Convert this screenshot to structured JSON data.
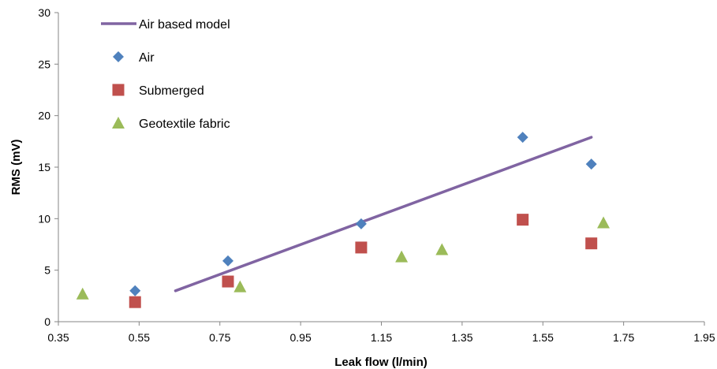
{
  "chart_data": {
    "type": "scatter",
    "xlabel": "Leak flow (l/min)",
    "ylabel": "RMS (mV)",
    "xlim": [
      0.35,
      1.95
    ],
    "ylim": [
      0,
      30
    ],
    "x_ticks": [
      "0.35",
      "0.55",
      "0.75",
      "0.95",
      "1.15",
      "1.35",
      "1.55",
      "1.75",
      "1.95"
    ],
    "y_ticks": [
      "0",
      "5",
      "10",
      "15",
      "20",
      "25",
      "30"
    ],
    "grid": false,
    "legend_placement": "top-left",
    "series": [
      {
        "name": "Air based model",
        "kind": "line",
        "color": "#8064A2",
        "points": [
          [
            0.64,
            3.0
          ],
          [
            1.67,
            17.9
          ]
        ]
      },
      {
        "name": "Air",
        "kind": "marker",
        "marker": "diamond",
        "color": "#4F81BD",
        "points": [
          [
            0.54,
            3.0
          ],
          [
            0.77,
            5.9
          ],
          [
            1.1,
            9.5
          ],
          [
            1.5,
            17.9
          ],
          [
            1.67,
            15.3
          ]
        ]
      },
      {
        "name": "Submerged",
        "kind": "marker",
        "marker": "square",
        "color": "#C0504D",
        "points": [
          [
            0.54,
            1.9
          ],
          [
            0.77,
            3.9
          ],
          [
            1.1,
            7.2
          ],
          [
            1.5,
            9.9
          ],
          [
            1.67,
            7.6
          ]
        ]
      },
      {
        "name": "Geotextile fabric",
        "kind": "marker",
        "marker": "triangle",
        "color": "#9BBB59",
        "points": [
          [
            0.41,
            2.7
          ],
          [
            0.8,
            3.4
          ],
          [
            1.2,
            6.3
          ],
          [
            1.3,
            7.0
          ],
          [
            1.7,
            9.6
          ]
        ]
      }
    ]
  }
}
